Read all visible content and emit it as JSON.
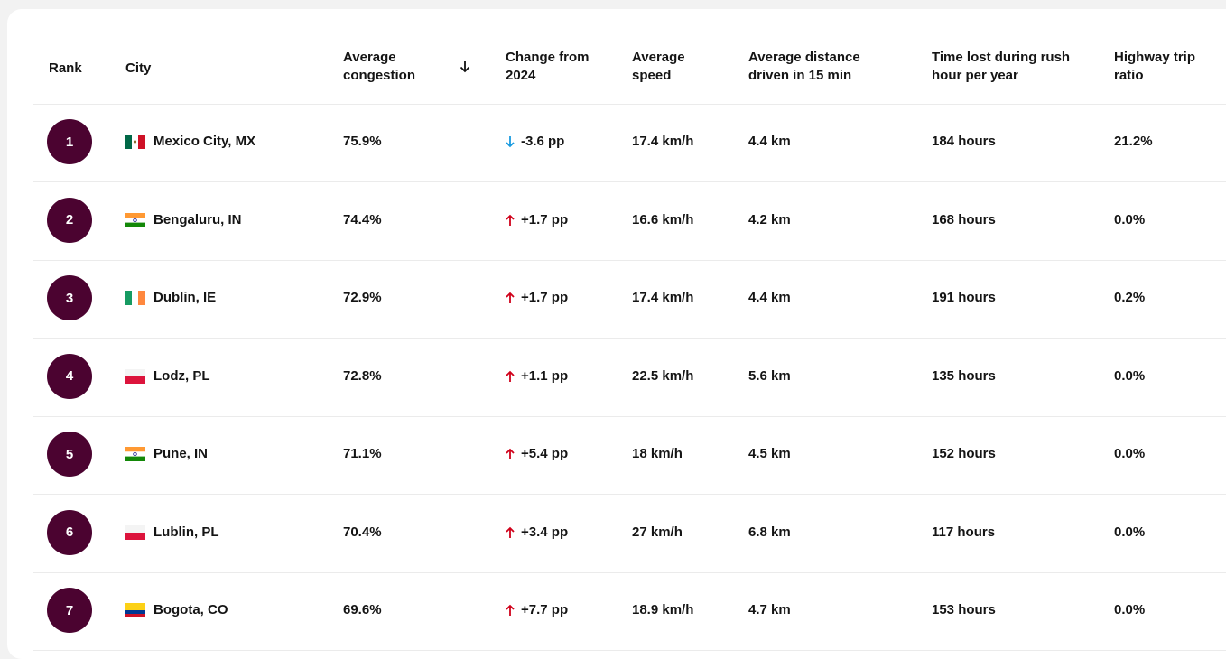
{
  "table": {
    "columns": [
      [
        "Rank"
      ],
      [
        "City"
      ],
      [
        "Average",
        "congestion"
      ],
      [
        "Change from",
        "2024"
      ],
      [
        "Average",
        "speed"
      ],
      [
        "Average distance",
        "driven in 15 min"
      ],
      [
        "Time lost during rush",
        "hour per year"
      ],
      [
        "Highway trip",
        "ratio"
      ]
    ],
    "rows": [
      [
        "1",
        "Mexico City, MX",
        "75.9%",
        "-3.6 pp",
        "17.4 km/h",
        "4.4 km",
        "184 hours",
        "21.2%"
      ],
      [
        "2",
        "Bengaluru, IN",
        "74.4%",
        "+1.7 pp",
        "16.6 km/h",
        "4.2 km",
        "168 hours",
        "0.0%"
      ],
      [
        "3",
        "Dublin, IE",
        "72.9%",
        "+1.7 pp",
        "17.4 km/h",
        "4.4 km",
        "191 hours",
        "0.2%"
      ],
      [
        "4",
        "Lodz, PL",
        "72.8%",
        "+1.1 pp",
        "22.5 km/h",
        "5.6 km",
        "135 hours",
        "0.0%"
      ],
      [
        "5",
        "Pune, IN",
        "71.1%",
        "+5.4 pp",
        "18 km/h",
        "4.5 km",
        "152 hours",
        "0.0%"
      ],
      [
        "6",
        "Lublin, PL",
        "70.4%",
        "+3.4 pp",
        "27 km/h",
        "6.8 km",
        "117 hours",
        "0.0%"
      ],
      [
        "7",
        "Bogota, CO",
        "69.6%",
        "+7.7 pp",
        "18.9 km/h",
        "4.7 km",
        "153 hours",
        "0.0%"
      ]
    ]
  }
}
